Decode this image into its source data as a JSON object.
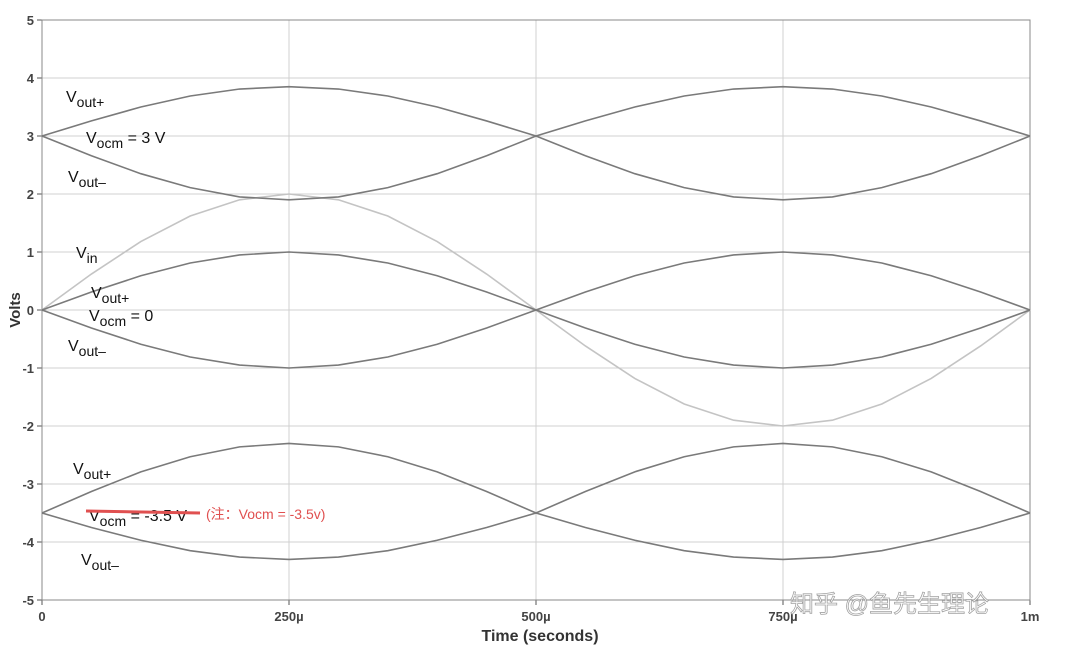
{
  "chart_data": {
    "type": "line",
    "xlabel": "Time (seconds)",
    "ylabel": "Volts",
    "xlim": [
      0,
      0.001
    ],
    "ylim": [
      -5,
      5
    ],
    "xticks": [
      0,
      {
        "value": 0.00025,
        "label": "250µ"
      },
      {
        "value": 0.0005,
        "label": "500µ"
      },
      {
        "value": 0.00075,
        "label": "750µ"
      },
      {
        "value": 0.001,
        "label": "1m"
      }
    ],
    "yticks": [
      -5,
      -4,
      -3,
      -2,
      -1,
      0,
      1,
      2,
      3,
      4,
      5
    ],
    "grid": true,
    "x": [
      0,
      5e-05,
      0.0001,
      0.00015,
      0.0002,
      0.00025,
      0.0003,
      0.00035,
      0.0004,
      0.00045,
      0.0005,
      0.00055,
      0.0006,
      0.00065,
      0.0007,
      0.00075,
      0.0008,
      0.00085,
      0.0009,
      0.00095,
      0.001
    ],
    "series": [
      {
        "color": "#c4c4c4",
        "values": [
          0,
          0.62,
          1.18,
          1.62,
          1.9,
          2,
          1.9,
          1.62,
          1.18,
          0.62,
          0,
          -0.62,
          -1.18,
          -1.62,
          -1.9,
          -2,
          -1.9,
          -1.62,
          -1.18,
          -0.62,
          0
        ]
      },
      {
        "color": "#7a7a7a",
        "values": [
          3,
          3.26,
          3.5,
          3.69,
          3.81,
          3.85,
          3.81,
          3.69,
          3.5,
          3.26,
          3,
          2.66,
          2.35,
          2.11,
          1.95,
          1.9,
          1.95,
          2.11,
          2.35,
          2.66,
          3
        ]
      },
      {
        "color": "#7a7a7a",
        "values": [
          3,
          2.66,
          2.35,
          2.11,
          1.95,
          1.9,
          1.95,
          2.11,
          2.35,
          2.66,
          3,
          3.26,
          3.5,
          3.69,
          3.81,
          3.85,
          3.81,
          3.69,
          3.5,
          3.26,
          3
        ]
      },
      {
        "color": "#7a7a7a",
        "values": [
          0,
          0.31,
          0.59,
          0.81,
          0.95,
          1,
          0.95,
          0.81,
          0.59,
          0.31,
          0,
          -0.31,
          -0.59,
          -0.81,
          -0.95,
          -1,
          -0.95,
          -0.81,
          -0.59,
          -0.31,
          0
        ]
      },
      {
        "color": "#7a7a7a",
        "values": [
          0,
          -0.31,
          -0.59,
          -0.81,
          -0.95,
          -1,
          -0.95,
          -0.81,
          -0.59,
          -0.31,
          0,
          0.31,
          0.59,
          0.81,
          0.95,
          1,
          0.95,
          0.81,
          0.59,
          0.31,
          0
        ]
      },
      {
        "color": "#7a7a7a",
        "values": [
          -3.5,
          -3.13,
          -2.79,
          -2.53,
          -2.36,
          -2.3,
          -2.36,
          -2.53,
          -2.79,
          -3.13,
          -3.5,
          -3.75,
          -3.97,
          -4.15,
          -4.26,
          -4.3,
          -4.26,
          -4.15,
          -3.97,
          -3.75,
          -3.5
        ]
      },
      {
        "color": "#7a7a7a",
        "values": [
          -3.5,
          -3.75,
          -3.97,
          -4.15,
          -4.26,
          -4.3,
          -4.26,
          -4.15,
          -3.97,
          -3.75,
          -3.5,
          -3.13,
          -2.79,
          -2.53,
          -2.36,
          -2.3,
          -2.36,
          -2.53,
          -2.79,
          -3.13,
          -3.5
        ]
      }
    ],
    "annotations": [
      {
        "text": "V",
        "sub": "out+"
      },
      {
        "text": "V",
        "sub": "ocm",
        "after": " = 3 V"
      },
      {
        "text": "V",
        "sub": "out–"
      },
      {
        "text": "V",
        "sub": "in"
      },
      {
        "text": "V",
        "sub": "out+"
      },
      {
        "text": "V",
        "sub": "ocm",
        "after": " = 0"
      },
      {
        "text": "V",
        "sub": "out–"
      },
      {
        "text": "V",
        "sub": "out+"
      },
      {
        "text": "V",
        "sub": "ocm",
        "after": " = -3.5 V"
      },
      {
        "text": "V",
        "sub": "out–"
      }
    ],
    "note": "(注：Vocm = -3.5v)",
    "watermark": "知乎 @鱼先生理论"
  }
}
